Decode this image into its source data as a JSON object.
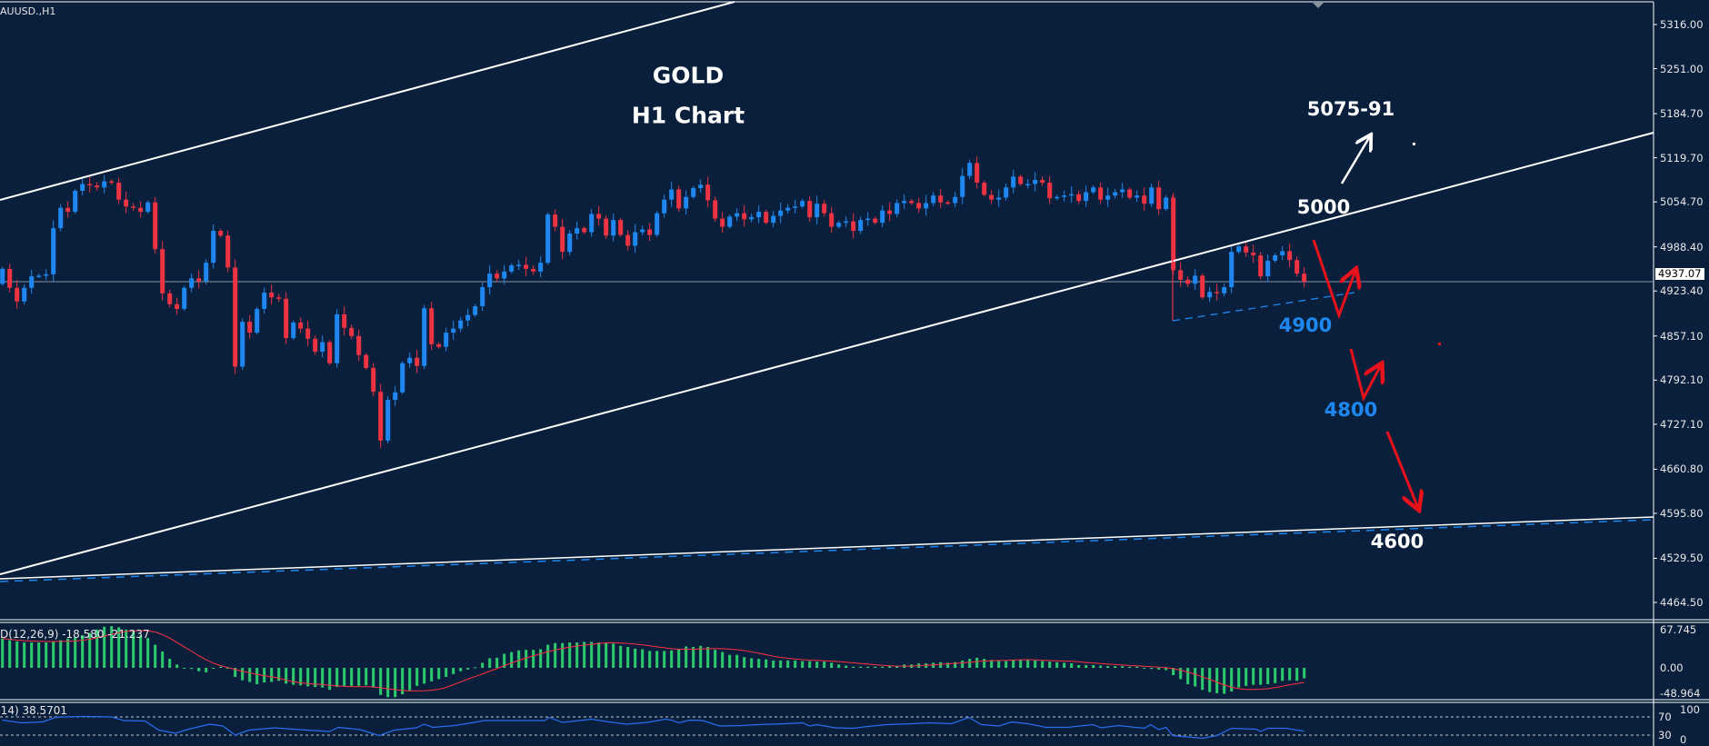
{
  "symbol_label": "AUUSD.,H1",
  "annotations": {
    "title": "GOLD",
    "subtitle": "H1 Chart",
    "target_up": "5075-91",
    "level_5000": "5000",
    "level_4900": "4900",
    "level_4800": "4800",
    "level_4600": "4600"
  },
  "colors": {
    "background": "#0a1f3b",
    "bull_candle": "#1e88f0",
    "bear_candle": "#ee3344",
    "macd_histogram": "#2ecc71",
    "macd_signal": "#ff3040",
    "rsi_line": "#2a6df0",
    "trendline": "#ffffff",
    "arrow_red": "#e8121c",
    "label_blue": "#1e88f0"
  },
  "chart_data": [
    {
      "type": "candlestick",
      "title": "GOLD H1 Chart",
      "price_axis_ticks": [
        "5316.00",
        "5251.00",
        "5184.70",
        "5119.70",
        "5054.70",
        "4988.40",
        "4923.40",
        "4857.10",
        "4792.10",
        "4727.10",
        "4660.80",
        "4595.80",
        "4529.50",
        "4464.50"
      ],
      "ylim": [
        4440,
        5340
      ],
      "current_price": "4937.07",
      "first_open": 4934,
      "close": [
        4956,
        4928,
        4908,
        4928,
        4945,
        4946,
        4948,
        5016,
        5046,
        5040,
        5071,
        5081,
        5079,
        5076,
        5085,
        5083,
        5058,
        5048,
        5046,
        5040,
        5054,
        4985,
        4920,
        4904,
        4897,
        4928,
        4942,
        4938,
        4965,
        5012,
        5005,
        4958,
        4812,
        4878,
        4862,
        4897,
        4921,
        4914,
        4912,
        4854,
        4877,
        4868,
        4853,
        4834,
        4848,
        4817,
        4889,
        4869,
        4857,
        4829,
        4810,
        4775,
        4703,
        4763,
        4774,
        4817,
        4825,
        4813,
        4898,
        4845,
        4841,
        4862,
        4868,
        4880,
        4888,
        4901,
        4929,
        4949,
        4942,
        4952,
        4961,
        4962,
        4956,
        4952,
        4965,
        5036,
        5018,
        4981,
        5008,
        5016,
        5010,
        5037,
        5030,
        5005,
        5028,
        5006,
        4990,
        5010,
        5014,
        5006,
        5038,
        5058,
        5073,
        5045,
        5062,
        5075,
        5080,
        5057,
        5030,
        5018,
        5033,
        5038,
        5029,
        5032,
        5040,
        5024,
        5034,
        5042,
        5046,
        5048,
        5056,
        5032,
        5052,
        5038,
        5018,
        5024,
        5026,
        5012,
        5028,
        5030,
        5024,
        5042,
        5037,
        5053,
        5056,
        5053,
        5045,
        5053,
        5064,
        5054,
        5053,
        5062,
        5093,
        5112,
        5083,
        5065,
        5058,
        5061,
        5076,
        5092,
        5081,
        5081,
        5087,
        5083,
        5060,
        5062,
        5064,
        5066,
        5056,
        5069,
        5076,
        5058,
        5064,
        5069,
        5073,
        5061,
        5064,
        5052,
        5076,
        5044,
        5061,
        4954,
        4940,
        4934,
        4946,
        4914,
        4922,
        4920,
        4929,
        4981,
        4989,
        4980,
        4976,
        4945,
        4968,
        4976,
        4982,
        4969,
        4949,
        4937.07
      ]
    },
    {
      "type": "bar",
      "label": "D(12,26,9) -18.580 -21.237",
      "axis_ticks": [
        "67.745",
        "0.00",
        "-48.964"
      ],
      "ylim": [
        -48.964,
        67.745
      ],
      "histogram": [
        52,
        49,
        47,
        45,
        45,
        45,
        45,
        47,
        49,
        52,
        54,
        58,
        62,
        68,
        73,
        74,
        72,
        68,
        65,
        57,
        53,
        41,
        29,
        16,
        6,
        0,
        -2,
        -6,
        -8,
        -1,
        2,
        -1,
        -16,
        -22,
        -25,
        -29,
        -26,
        -25,
        -23,
        -28,
        -30,
        -31,
        -33,
        -34,
        -35,
        -39,
        -34,
        -32,
        -32,
        -32,
        -31,
        -35,
        -48,
        -52,
        -52,
        -47,
        -40,
        -32,
        -28,
        -24,
        -20,
        -16,
        -11,
        -6,
        -3,
        1,
        9,
        17,
        18,
        25,
        28,
        31,
        32,
        32,
        33,
        41,
        44,
        44,
        45,
        45,
        46,
        46,
        45,
        45,
        43,
        39,
        37,
        34,
        33,
        30,
        30,
        30,
        31,
        34,
        38,
        37,
        39,
        37,
        32,
        28,
        23,
        23,
        19,
        17,
        16,
        15,
        13,
        13,
        13,
        13,
        12,
        12,
        11,
        11,
        9,
        6,
        4,
        2,
        2,
        2,
        2,
        2,
        3,
        4,
        6,
        6,
        8,
        8,
        9,
        10,
        9,
        10,
        13,
        16,
        18,
        16,
        14,
        12,
        12,
        14,
        14,
        14,
        13,
        12,
        11,
        10,
        9,
        8,
        5,
        5,
        5,
        4,
        3,
        3,
        3,
        2,
        2,
        -1,
        -2,
        -3,
        -4,
        -13,
        -20,
        -29,
        -33,
        -39,
        -43,
        -45,
        -46,
        -42,
        -35,
        -32,
        -30,
        -30,
        -29,
        -27,
        -23,
        -22,
        -23,
        -18.58
      ]
    },
    {
      "type": "line",
      "label": "(14) 38.5701",
      "axis_ticks": [
        "100",
        "70",
        "30",
        "0"
      ],
      "levels": [
        70,
        30
      ],
      "ylim": [
        0,
        100
      ],
      "points": [
        [
          0,
          63
        ],
        [
          2.6,
          57
        ],
        [
          5.5,
          59
        ],
        [
          7.3,
          69
        ],
        [
          8.5,
          70
        ],
        [
          11.4,
          71
        ],
        [
          15,
          70
        ],
        [
          16.7,
          62
        ],
        [
          19.6,
          61
        ],
        [
          21.5,
          41
        ],
        [
          23.8,
          34
        ],
        [
          25.6,
          43
        ],
        [
          28.5,
          54
        ],
        [
          30.3,
          50
        ],
        [
          32,
          30
        ],
        [
          33.9,
          41
        ],
        [
          37.4,
          46
        ],
        [
          40.9,
          42
        ],
        [
          45,
          38
        ],
        [
          46.2,
          47
        ],
        [
          49.2,
          42
        ],
        [
          51.8,
          29
        ],
        [
          53.9,
          41
        ],
        [
          56.9,
          46
        ],
        [
          58,
          54
        ],
        [
          59.2,
          47
        ],
        [
          62.2,
          51
        ],
        [
          66.3,
          62
        ],
        [
          70.4,
          62
        ],
        [
          74.5,
          62
        ],
        [
          75.2,
          69
        ],
        [
          77,
          58
        ],
        [
          81,
          65
        ],
        [
          83.4,
          59
        ],
        [
          85.8,
          54
        ],
        [
          88.7,
          58
        ],
        [
          91.1,
          65
        ],
        [
          92,
          63
        ],
        [
          93,
          57
        ],
        [
          94.5,
          63
        ],
        [
          96.3,
          62
        ],
        [
          98.6,
          50
        ],
        [
          101.6,
          51
        ],
        [
          104,
          53
        ],
        [
          107.5,
          55
        ],
        [
          110,
          57
        ],
        [
          111,
          50
        ],
        [
          112,
          53
        ],
        [
          114.5,
          46
        ],
        [
          117,
          45
        ],
        [
          119,
          49
        ],
        [
          121.6,
          53
        ],
        [
          125,
          55
        ],
        [
          127.5,
          57
        ],
        [
          130.5,
          55
        ],
        [
          132.9,
          69
        ],
        [
          134.6,
          53
        ],
        [
          137,
          50
        ],
        [
          138.8,
          59
        ],
        [
          141,
          55
        ],
        [
          143.5,
          47
        ],
        [
          146.4,
          47
        ],
        [
          150,
          53
        ],
        [
          151,
          46
        ],
        [
          153.5,
          51
        ],
        [
          157,
          45
        ],
        [
          157.9,
          53
        ],
        [
          159,
          42
        ],
        [
          160,
          47
        ],
        [
          160.9,
          29
        ],
        [
          163,
          26
        ],
        [
          165,
          23
        ],
        [
          167,
          29
        ],
        [
          169,
          45
        ],
        [
          172.4,
          43
        ],
        [
          173,
          38
        ],
        [
          174,
          45
        ],
        [
          176.5,
          45
        ],
        [
          179,
          38.57
        ]
      ]
    }
  ]
}
